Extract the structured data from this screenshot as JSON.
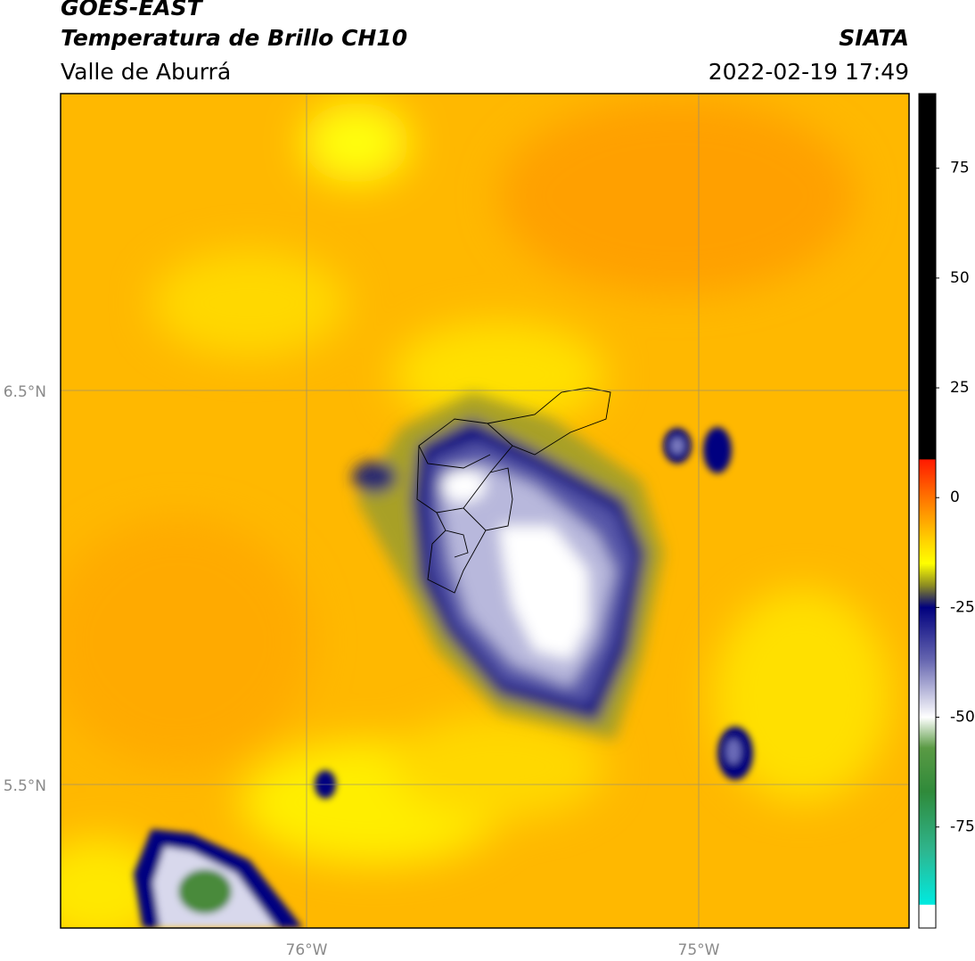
{
  "header": {
    "title": "GOES-EAST",
    "subtitle": "Temperatura de Brillo CH10",
    "region": "Valle de Aburrá",
    "source": "SIATA",
    "datetime": "2022-02-19 17:49"
  },
  "map": {
    "lat_labels": [
      "6.5°N",
      "5.5°N"
    ],
    "lon_labels": [
      "76°W",
      "75°W"
    ]
  },
  "colorbar": {
    "lim": [
      -98,
      92
    ],
    "ticks": [
      75,
      50,
      25,
      0,
      -25,
      -50,
      -75
    ],
    "stops": [
      {
        "value": 92,
        "color": "#000000"
      },
      {
        "value": 8.8,
        "color": "#000000"
      },
      {
        "value": 8.6,
        "color": "#ff1a00"
      },
      {
        "value": 0,
        "color": "#ff7400"
      },
      {
        "value": -10,
        "color": "#ffd400"
      },
      {
        "value": -15,
        "color": "#ffff00"
      },
      {
        "value": -20,
        "color": "#8c8c22"
      },
      {
        "value": -25,
        "color": "#00007e"
      },
      {
        "value": -37,
        "color": "#6666b0"
      },
      {
        "value": -50,
        "color": "#ffffff"
      },
      {
        "value": -57,
        "color": "#5a9a44"
      },
      {
        "value": -67,
        "color": "#2f8a3a"
      },
      {
        "value": -80,
        "color": "#2fb48c"
      },
      {
        "value": -92.6,
        "color": "#00eae0"
      },
      {
        "value": -92.8,
        "color": "#ffffff"
      },
      {
        "value": -98,
        "color": "#ffffff"
      }
    ]
  }
}
